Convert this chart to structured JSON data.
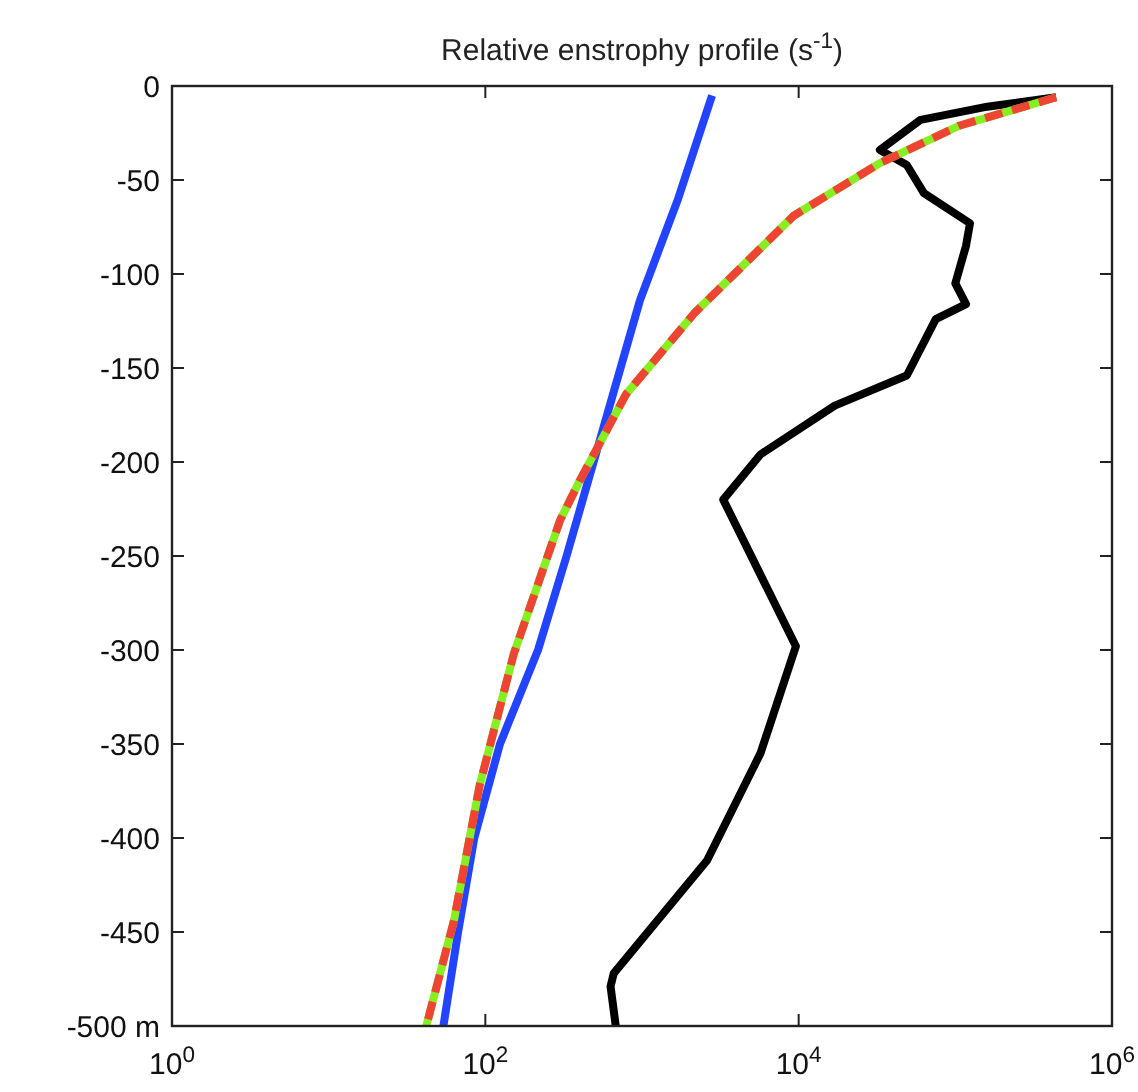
{
  "chart_data": {
    "type": "line",
    "title": "Relative enstrophy profile (s$^{-1}$)",
    "log": "x",
    "grid": false,
    "xlim": [
      1,
      1000000
    ],
    "xticks": [
      {
        "value": 1,
        "label": "10$^{0}$"
      },
      {
        "value": 100,
        "label": "10$^{2}$"
      },
      {
        "value": 10000,
        "label": "10$^{4}$"
      },
      {
        "value": 1000000,
        "label": "10$^{6}$"
      }
    ],
    "ylim": [
      -500,
      0
    ],
    "yticks": [
      0,
      -50,
      -100,
      -150,
      -200,
      -250,
      -300,
      -350,
      -400,
      -450,
      {
        "value": -500,
        "label": "-500 m"
      }
    ],
    "series": [
      {
        "color": "#000000",
        "line_style": "solid",
        "x": [
          440000,
          160000,
          60000,
          33000,
          49000,
          63000,
          124000,
          117000,
          100000,
          117000,
          75000,
          49000,
          17000,
          5700,
          3300,
          9600,
          5700,
          2600,
          660,
          630,
          680
        ],
        "values": [
          -6,
          -11,
          -18,
          -34,
          -42,
          -57,
          -73,
          -85,
          -105,
          -116,
          -124,
          -154,
          -170,
          -196,
          -220,
          -298,
          -355,
          -412,
          -472,
          -479,
          -500
        ]
      },
      {
        "color": "#2244ff",
        "line_style": "solid",
        "x": [
          2800,
          1700,
          970,
          540,
          330,
          217,
          124,
          85,
          67,
          54
        ],
        "values": [
          -5,
          -60,
          -114,
          -188,
          -250,
          -300,
          -350,
          -400,
          -450,
          -500
        ]
      },
      {
        "color": "#88ee22",
        "line_style": "solid",
        "x": [
          440000,
          107000,
          33000,
          9300,
          2150,
          790,
          400,
          300,
          152,
          92,
          63,
          42
        ],
        "values": [
          -6,
          -21,
          -41,
          -69,
          -121,
          -164,
          -210,
          -231,
          -302,
          -372,
          -444,
          -500
        ]
      },
      {
        "color": "#ee4433",
        "line_style": "dashed",
        "x": [
          440000,
          107000,
          33000,
          9300,
          2150,
          790,
          400,
          300,
          152,
          92,
          63,
          42
        ],
        "values": [
          -6,
          -21,
          -41,
          -69,
          -121,
          -164,
          -210,
          -231,
          -302,
          -372,
          -444,
          -500
        ]
      }
    ]
  }
}
